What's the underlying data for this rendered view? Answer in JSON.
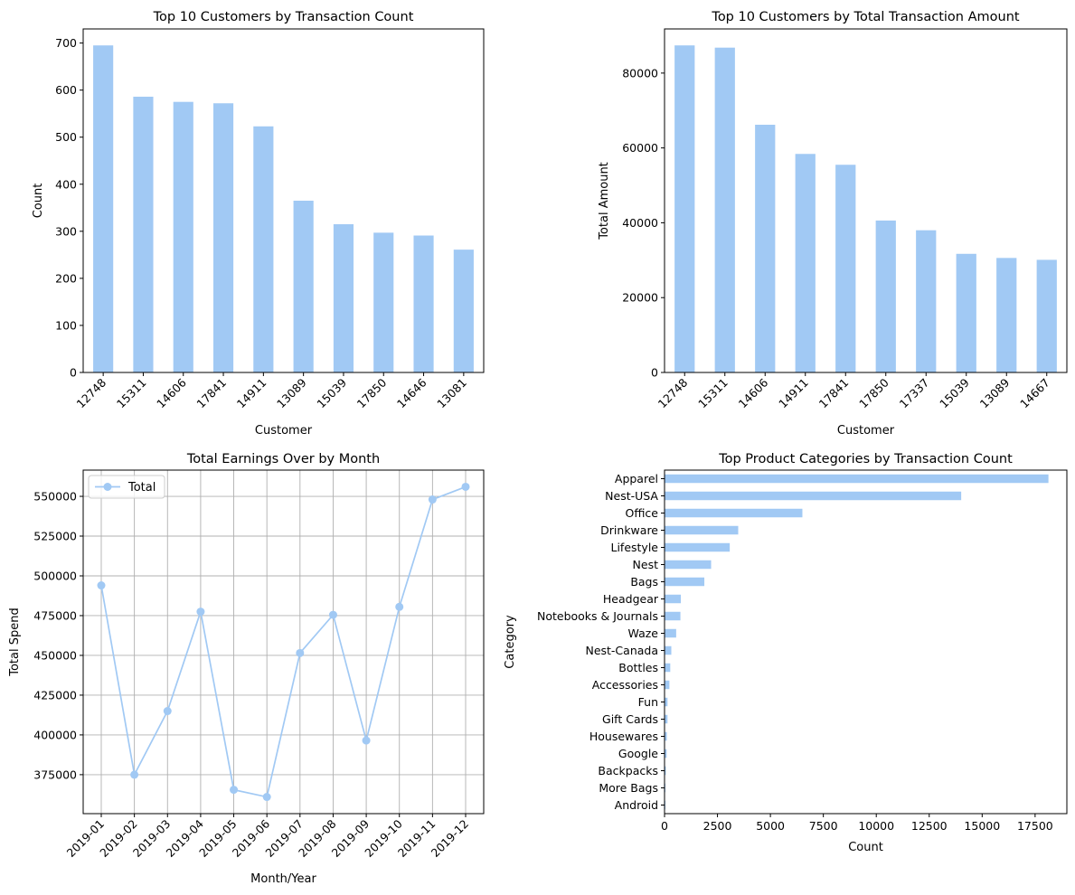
{
  "colors": {
    "bar": "#a1c9f4",
    "line": "#a1c9f4",
    "axis": "#000000",
    "grid": "#b0b0b0"
  },
  "chart_data": [
    {
      "type": "bar",
      "title": "Top 10 Customers by Transaction Count",
      "xlabel": "Customer",
      "ylabel": "Count",
      "categories": [
        "12748",
        "15311",
        "14606",
        "17841",
        "14911",
        "13089",
        "15039",
        "17850",
        "14646",
        "13081"
      ],
      "values": [
        695,
        586,
        575,
        572,
        523,
        365,
        315,
        297,
        291,
        261
      ],
      "ylim": [
        0,
        730
      ],
      "yticks": [
        0,
        100,
        200,
        300,
        400,
        500,
        600,
        700
      ],
      "ytick_labels": [
        "0",
        "100",
        "200",
        "300",
        "400",
        "500",
        "600",
        "700"
      ],
      "grid": false
    },
    {
      "type": "bar",
      "title": "Top 10 Customers by Total Transaction Amount",
      "xlabel": "Customer",
      "ylabel": "Total Amount",
      "categories": [
        "12748",
        "15311",
        "14606",
        "14911",
        "17841",
        "17850",
        "17337",
        "15039",
        "13089",
        "14667"
      ],
      "values": [
        87400,
        86800,
        66200,
        58400,
        55500,
        40600,
        38000,
        31700,
        30600,
        30100
      ],
      "ylim": [
        0,
        91800
      ],
      "yticks": [
        0,
        20000,
        40000,
        60000,
        80000
      ],
      "ytick_labels": [
        "0",
        "20000",
        "40000",
        "60000",
        "80000"
      ],
      "grid": false
    },
    {
      "type": "line",
      "title": "Total Earnings Over by Month",
      "xlabel": "Month/Year",
      "ylabel": "Total Spend",
      "categories": [
        "2019-01",
        "2019-02",
        "2019-03",
        "2019-04",
        "2019-05",
        "2019-06",
        "2019-07",
        "2019-08",
        "2019-09",
        "2019-10",
        "2019-11",
        "2019-12"
      ],
      "series": [
        {
          "name": "Total",
          "values": [
            494000,
            375000,
            415000,
            477500,
            365500,
            361000,
            451500,
            475500,
            396500,
            480500,
            548000,
            556000
          ]
        }
      ],
      "ylim": [
        350500,
        566500
      ],
      "yticks": [
        375000,
        400000,
        425000,
        450000,
        475000,
        500000,
        525000,
        550000
      ],
      "ytick_labels": [
        "375000",
        "400000",
        "425000",
        "450000",
        "475000",
        "500000",
        "525000",
        "550000"
      ],
      "grid": true,
      "legend": "top-left"
    },
    {
      "type": "bar",
      "orientation": "horizontal",
      "title": "Top Product Categories by Transaction Count",
      "xlabel": "Count",
      "ylabel": "Category",
      "categories": [
        "Apparel",
        "Nest-USA",
        "Office",
        "Drinkware",
        "Lifestyle",
        "Nest",
        "Bags",
        "Headgear",
        "Notebooks & Journals",
        "Waze",
        "Nest-Canada",
        "Bottles",
        "Accessories",
        "Fun",
        "Gift Cards",
        "Housewares",
        "Google",
        "Backpacks",
        "More Bags",
        "Android"
      ],
      "values": [
        18130,
        14010,
        6510,
        3480,
        3080,
        2200,
        1880,
        770,
        750,
        550,
        320,
        270,
        230,
        140,
        140,
        110,
        100,
        60,
        40,
        40
      ],
      "xlim": [
        0,
        19000
      ],
      "xticks": [
        0,
        2500,
        5000,
        7500,
        10000,
        12500,
        15000,
        17500
      ],
      "xtick_labels": [
        "0",
        "2500",
        "5000",
        "7500",
        "10000",
        "12500",
        "15000",
        "17500"
      ],
      "grid": false
    }
  ]
}
